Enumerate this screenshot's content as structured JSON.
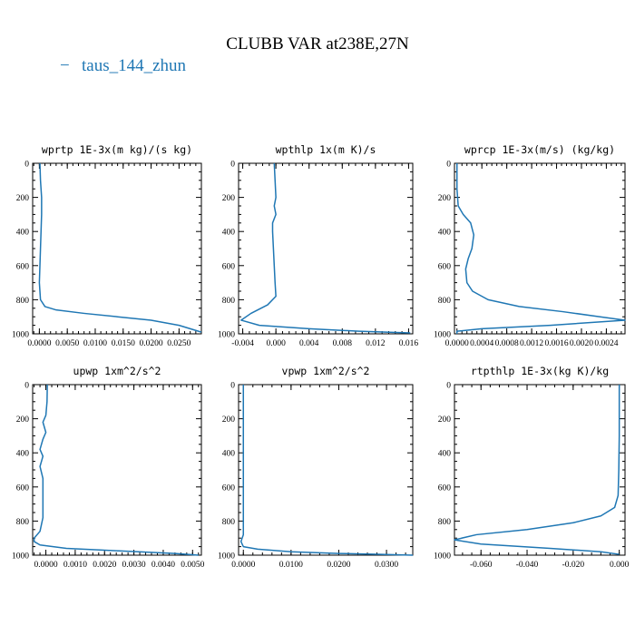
{
  "figure": {
    "title": "CLUBB VAR at238E,27N",
    "legend": [
      {
        "marker": "−",
        "label": "taus_144_zhun",
        "color": "#1f77b4"
      }
    ]
  },
  "chart_data": [
    {
      "type": "line",
      "title": "wprtp  1E-3x(m kg)/(s kg)",
      "xlim": [
        -0.0012,
        0.029
      ],
      "ylim": [
        1000,
        0
      ],
      "xticks": [
        0.0,
        0.005,
        0.01,
        0.015,
        0.02,
        0.025
      ],
      "xtick_labels": [
        "0.0000",
        "0.0050",
        "0.0100",
        "0.0150",
        "0.0200",
        "0.0250"
      ],
      "yticks": [
        0,
        200,
        400,
        600,
        800,
        1000
      ],
      "ytick_labels": [
        "0",
        "200",
        "400",
        "600",
        "800",
        "1000"
      ],
      "series": [
        {
          "x": [
            0.0001,
            0.0002,
            0.0004,
            0.0004,
            0.0003,
            0.0002,
            0.0001,
            0.0,
            0.0002,
            0.001,
            0.003,
            0.008,
            0.014,
            0.02,
            0.025,
            0.029
          ],
          "y": [
            0,
            100,
            200,
            300,
            400,
            500,
            600,
            700,
            800,
            840,
            860,
            880,
            900,
            920,
            950,
            990
          ]
        }
      ]
    },
    {
      "type": "line",
      "title": "wpthlp  1x(m K)/s",
      "xlim": [
        -0.0045,
        0.0165
      ],
      "ylim": [
        1000,
        0
      ],
      "xticks": [
        -0.004,
        0.0,
        0.004,
        0.008,
        0.012,
        0.016
      ],
      "xtick_labels": [
        "-0.004",
        "0.000",
        "0.004",
        "0.008",
        "0.012",
        "0.016"
      ],
      "yticks": [
        0,
        200,
        400,
        600,
        800,
        1000
      ],
      "ytick_labels": [
        "0",
        "200",
        "400",
        "600",
        "800",
        "1000"
      ],
      "series": [
        {
          "x": [
            -0.0002,
            -0.0001,
            0.0,
            -0.0002,
            0.0,
            -0.0004,
            -0.0004,
            -0.0003,
            -0.0002,
            -0.0001,
            0.0,
            -0.001,
            -0.003,
            -0.0042,
            -0.002,
            0.004,
            0.01,
            0.0162
          ],
          "y": [
            0,
            100,
            200,
            250,
            300,
            350,
            400,
            500,
            600,
            700,
            780,
            830,
            880,
            920,
            950,
            970,
            985,
            995
          ]
        }
      ]
    },
    {
      "type": "line",
      "title": "wprcp  1E-3x(m/s) (kg/kg)",
      "xlim": [
        -4e-05,
        0.0027
      ],
      "ylim": [
        1000,
        0
      ],
      "xticks": [
        0.0,
        0.0004,
        0.0008,
        0.0012,
        0.0016,
        0.002,
        0.0024
      ],
      "xtick_labels": [
        "0.0000",
        "0.0004",
        "0.0008",
        "0.0012",
        "0.0016",
        "0.0020",
        "0.0024"
      ],
      "yticks": [
        0,
        200,
        400,
        600,
        800,
        1000
      ],
      "ytick_labels": [
        "0",
        "200",
        "400",
        "600",
        "800",
        "1000"
      ],
      "series": [
        {
          "x": [
            0.0,
            0.0,
            2e-05,
            0.0001,
            0.00022,
            0.00027,
            0.00024,
            0.00018,
            0.00014,
            0.00016,
            0.00025,
            0.0005,
            0.001,
            0.0017,
            0.0023,
            0.0027,
            0.0015,
            0.0004,
            0.0,
            0.0
          ],
          "y": [
            0,
            150,
            250,
            300,
            350,
            420,
            500,
            560,
            620,
            700,
            750,
            800,
            840,
            870,
            900,
            920,
            950,
            970,
            985,
            1000
          ]
        }
      ]
    },
    {
      "type": "line",
      "title": "upwp  1xm^2/s^2",
      "xlim": [
        -0.00045,
        0.0053
      ],
      "ylim": [
        1000,
        0
      ],
      "xticks": [
        0.0,
        0.001,
        0.002,
        0.003,
        0.004,
        0.005
      ],
      "xtick_labels": [
        "0.0000",
        "0.0010",
        "0.0020",
        "0.0030",
        "0.0040",
        "0.0050"
      ],
      "yticks": [
        0,
        200,
        400,
        600,
        800,
        1000
      ],
      "ytick_labels": [
        "0",
        "200",
        "400",
        "600",
        "800",
        "1000"
      ],
      "series": [
        {
          "x": [
            5e-05,
            4e-05,
            0.0,
            -0.0001,
            -0.0,
            -0.0001,
            -0.0002,
            -0.0001,
            -0.0002,
            -0.0001,
            -0.0001,
            -0.0001,
            -0.0002,
            -0.0004,
            -0.0004,
            -0.0002,
            0.0007,
            0.0025,
            0.0044,
            0.0052
          ],
          "y": [
            0,
            100,
            180,
            220,
            280,
            320,
            380,
            420,
            480,
            550,
            650,
            780,
            860,
            900,
            920,
            940,
            960,
            975,
            990,
            1000
          ]
        }
      ]
    },
    {
      "type": "line",
      "title": "vpwp  1xm^2/s^2",
      "xlim": [
        -0.001,
        0.0355
      ],
      "ylim": [
        1000,
        0
      ],
      "xticks": [
        0.0,
        0.01,
        0.02,
        0.03
      ],
      "xtick_labels": [
        "0.0000",
        "0.0100",
        "0.0200",
        "0.0300"
      ],
      "yticks": [
        0,
        200,
        400,
        600,
        800,
        1000
      ],
      "ytick_labels": [
        "0",
        "200",
        "400",
        "600",
        "800",
        "1000"
      ],
      "series": [
        {
          "x": [
            0.0,
            0.0,
            0.0,
            0.0,
            0.0,
            0.0,
            -0.0005,
            0.0,
            0.003,
            0.01,
            0.02,
            0.028,
            0.0355
          ],
          "y": [
            0,
            200,
            400,
            600,
            800,
            880,
            920,
            950,
            965,
            980,
            990,
            995,
            1000
          ]
        }
      ]
    },
    {
      "type": "line",
      "title": "rtpthlp  1E-3x(kg K)/kg",
      "xlim": [
        -0.0715,
        0.0025
      ],
      "ylim": [
        1000,
        0
      ],
      "xticks": [
        -0.06,
        -0.04,
        -0.02,
        0.0
      ],
      "xtick_labels": [
        "-0.060",
        "-0.040",
        "-0.020",
        "0.000"
      ],
      "yticks": [
        0,
        200,
        400,
        600,
        800,
        1000
      ],
      "ytick_labels": [
        "0",
        "200",
        "400",
        "600",
        "800",
        "1000"
      ],
      "series": [
        {
          "x": [
            0.0,
            0.0,
            -0.0002,
            -0.0005,
            -0.002,
            -0.008,
            -0.02,
            -0.04,
            -0.062,
            -0.0715,
            -0.06,
            -0.03,
            -0.008,
            0.0
          ],
          "y": [
            0,
            300,
            500,
            650,
            720,
            770,
            810,
            850,
            880,
            910,
            935,
            960,
            980,
            995
          ]
        }
      ]
    }
  ]
}
